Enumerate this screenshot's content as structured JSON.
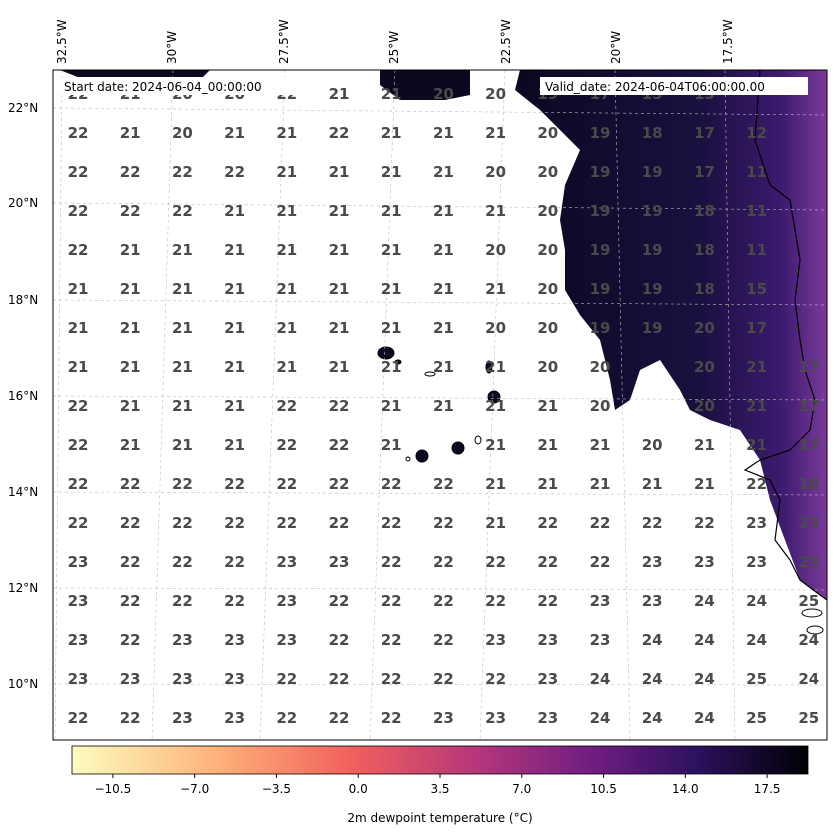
{
  "header": {
    "start_date": "Start date: 2024-06-04_00:00:00",
    "valid_date": "Valid_date: 2024-06-04T06:00:00.00"
  },
  "axes": {
    "lon_labels": [
      "32.5°W",
      "30°W",
      "27.5°W",
      "25°W",
      "22.5°W",
      "20°W",
      "17.5°W"
    ],
    "lat_labels": [
      "22°N",
      "20°N",
      "18°N",
      "16°N",
      "14°N",
      "12°N",
      "10°N"
    ]
  },
  "colorbar": {
    "ticks": [
      "−10.5",
      "−7.0",
      "−3.5",
      "0.0",
      "3.5",
      "7.0",
      "10.5",
      "14.0",
      "17.5"
    ],
    "title": "2m dewpoint temperature ($^\\circ$C)",
    "title_display": "2m dewpoint temperature (°C)",
    "min": -12.25,
    "max": 19.25,
    "colormap": [
      "#fcfdbf",
      "#feb078",
      "#f1605d",
      "#b5367a",
      "#721f81",
      "#2c115f",
      "#000004"
    ]
  },
  "grid_values": [
    [
      "22",
      "21",
      "20",
      "20",
      "22",
      "21",
      "21",
      "20",
      "20",
      "19",
      "17",
      "15",
      "13"
    ],
    [
      "22",
      "21",
      "20",
      "21",
      "21",
      "22",
      "21",
      "21",
      "21",
      "20",
      "19",
      "18",
      "17",
      "12"
    ],
    [
      "22",
      "22",
      "22",
      "22",
      "21",
      "21",
      "21",
      "21",
      "20",
      "20",
      "19",
      "19",
      "17",
      "11"
    ],
    [
      "22",
      "22",
      "22",
      "21",
      "21",
      "21",
      "21",
      "21",
      "21",
      "20",
      "19",
      "19",
      "18",
      "11"
    ],
    [
      "22",
      "21",
      "21",
      "21",
      "21",
      "21",
      "21",
      "21",
      "20",
      "20",
      "19",
      "19",
      "18",
      "11"
    ],
    [
      "21",
      "21",
      "21",
      "21",
      "21",
      "21",
      "21",
      "21",
      "21",
      "20",
      "19",
      "19",
      "18",
      "15"
    ],
    [
      "21",
      "21",
      "21",
      "21",
      "21",
      "21",
      "21",
      "21",
      "20",
      "20",
      "19",
      "19",
      "20",
      "17"
    ],
    [
      "21",
      "21",
      "21",
      "21",
      "21",
      "21",
      "21",
      "21",
      "21",
      "20",
      "20",
      "",
      "20",
      "21",
      "17"
    ],
    [
      "22",
      "21",
      "21",
      "21",
      "22",
      "22",
      "21",
      "21",
      "21",
      "21",
      "20",
      "",
      "20",
      "21",
      "17"
    ],
    [
      "22",
      "21",
      "21",
      "21",
      "22",
      "22",
      "21",
      "",
      "21",
      "21",
      "21",
      "20",
      "21",
      "21",
      "17"
    ],
    [
      "22",
      "22",
      "22",
      "22",
      "22",
      "22",
      "22",
      "22",
      "21",
      "21",
      "21",
      "21",
      "21",
      "22",
      "18"
    ],
    [
      "22",
      "22",
      "22",
      "22",
      "22",
      "22",
      "22",
      "22",
      "21",
      "22",
      "22",
      "22",
      "22",
      "23",
      "23"
    ],
    [
      "23",
      "22",
      "22",
      "22",
      "23",
      "23",
      "22",
      "22",
      "22",
      "22",
      "22",
      "23",
      "23",
      "23",
      "23"
    ],
    [
      "23",
      "22",
      "22",
      "22",
      "23",
      "22",
      "22",
      "22",
      "22",
      "22",
      "23",
      "23",
      "24",
      "24",
      "25"
    ],
    [
      "23",
      "22",
      "23",
      "23",
      "23",
      "22",
      "22",
      "22",
      "23",
      "23",
      "23",
      "24",
      "24",
      "24",
      "24"
    ],
    [
      "23",
      "23",
      "23",
      "23",
      "22",
      "22",
      "22",
      "22",
      "22",
      "23",
      "24",
      "24",
      "24",
      "25",
      "24"
    ],
    [
      "22",
      "22",
      "23",
      "23",
      "22",
      "22",
      "22",
      "23",
      "23",
      "23",
      "24",
      "24",
      "24",
      "25",
      "25"
    ]
  ]
}
